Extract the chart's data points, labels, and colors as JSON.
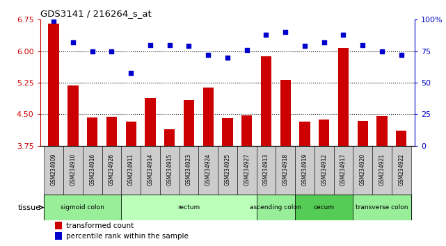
{
  "title": "GDS3141 / 216264_s_at",
  "samples": [
    "GSM234909",
    "GSM234910",
    "GSM234916",
    "GSM234926",
    "GSM234911",
    "GSM234914",
    "GSM234915",
    "GSM234923",
    "GSM234924",
    "GSM234925",
    "GSM234927",
    "GSM234913",
    "GSM234918",
    "GSM234919",
    "GSM234912",
    "GSM234917",
    "GSM234920",
    "GSM234921",
    "GSM234922"
  ],
  "bar_values": [
    6.65,
    5.18,
    4.42,
    4.44,
    4.33,
    4.88,
    4.15,
    4.84,
    5.14,
    4.4,
    4.47,
    5.88,
    5.32,
    4.32,
    4.38,
    6.07,
    4.34,
    4.46,
    4.11
  ],
  "dot_values": [
    99,
    82,
    75,
    75,
    58,
    80,
    80,
    79,
    72,
    70,
    76,
    88,
    90,
    79,
    82,
    88,
    80,
    75,
    72
  ],
  "ylim_left": [
    3.75,
    6.75
  ],
  "ylim_right": [
    0,
    100
  ],
  "yticks_left": [
    3.75,
    4.5,
    5.25,
    6.0,
    6.75
  ],
  "yticks_right": [
    0,
    25,
    50,
    75,
    100
  ],
  "hlines": [
    6.0,
    5.25,
    4.5
  ],
  "bar_color": "#cc0000",
  "dot_color": "#0000cc",
  "bar_bottom": 3.75,
  "tissue_groups": [
    {
      "label": "sigmoid colon",
      "start": 0,
      "end": 4,
      "color": "#99ee99"
    },
    {
      "label": "rectum",
      "start": 4,
      "end": 11,
      "color": "#bbffbb"
    },
    {
      "label": "ascending colon",
      "start": 11,
      "end": 13,
      "color": "#99ee99"
    },
    {
      "label": "cecum",
      "start": 13,
      "end": 16,
      "color": "#55cc55"
    },
    {
      "label": "transverse colon",
      "start": 16,
      "end": 19,
      "color": "#99ee99"
    }
  ],
  "legend_bar_label": "transformed count",
  "legend_dot_label": "percentile rank within the sample",
  "tissue_label": "tissue",
  "right_yaxis_color": "#0000cc",
  "left_yaxis_color": "#cc0000",
  "label_bg_color": "#cccccc",
  "plot_bg": "#ffffff",
  "fig_bg": "#ffffff"
}
